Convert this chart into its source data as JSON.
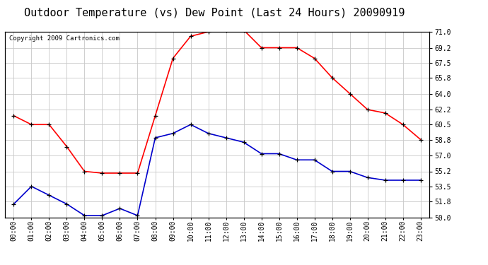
{
  "title": "Outdoor Temperature (vs) Dew Point (Last 24 Hours) 20090919",
  "copyright_text": "Copyright 2009 Cartronics.com",
  "hours": [
    "00:00",
    "01:00",
    "02:00",
    "03:00",
    "04:00",
    "05:00",
    "06:00",
    "07:00",
    "08:00",
    "09:00",
    "10:00",
    "11:00",
    "12:00",
    "13:00",
    "14:00",
    "15:00",
    "16:00",
    "17:00",
    "18:00",
    "19:00",
    "20:00",
    "21:00",
    "22:00",
    "23:00"
  ],
  "temp_red": [
    61.5,
    60.5,
    60.5,
    58.0,
    55.2,
    55.0,
    55.0,
    55.0,
    61.5,
    68.0,
    70.5,
    71.0,
    71.2,
    71.2,
    69.2,
    69.2,
    69.2,
    68.0,
    65.8,
    64.0,
    62.2,
    61.8,
    60.5,
    58.8
  ],
  "dew_blue": [
    51.5,
    53.5,
    52.5,
    51.5,
    50.2,
    50.2,
    51.0,
    50.2,
    59.0,
    59.5,
    60.5,
    59.5,
    59.0,
    58.5,
    57.2,
    57.2,
    56.5,
    56.5,
    55.2,
    55.2,
    54.5,
    54.2,
    54.2,
    54.2
  ],
  "ylim": [
    50.0,
    71.0
  ],
  "yticks": [
    50.0,
    51.8,
    53.5,
    55.2,
    57.0,
    58.8,
    60.5,
    62.2,
    64.0,
    65.8,
    67.5,
    69.2,
    71.0
  ],
  "bg_color": "#ffffff",
  "grid_color": "#c8c8c8",
  "title_fontsize": 11,
  "copyright_fontsize": 6.5,
  "tick_fontsize": 7,
  "line_color_red": "#ff0000",
  "line_color_blue": "#0000cc",
  "marker_color": "#000000"
}
